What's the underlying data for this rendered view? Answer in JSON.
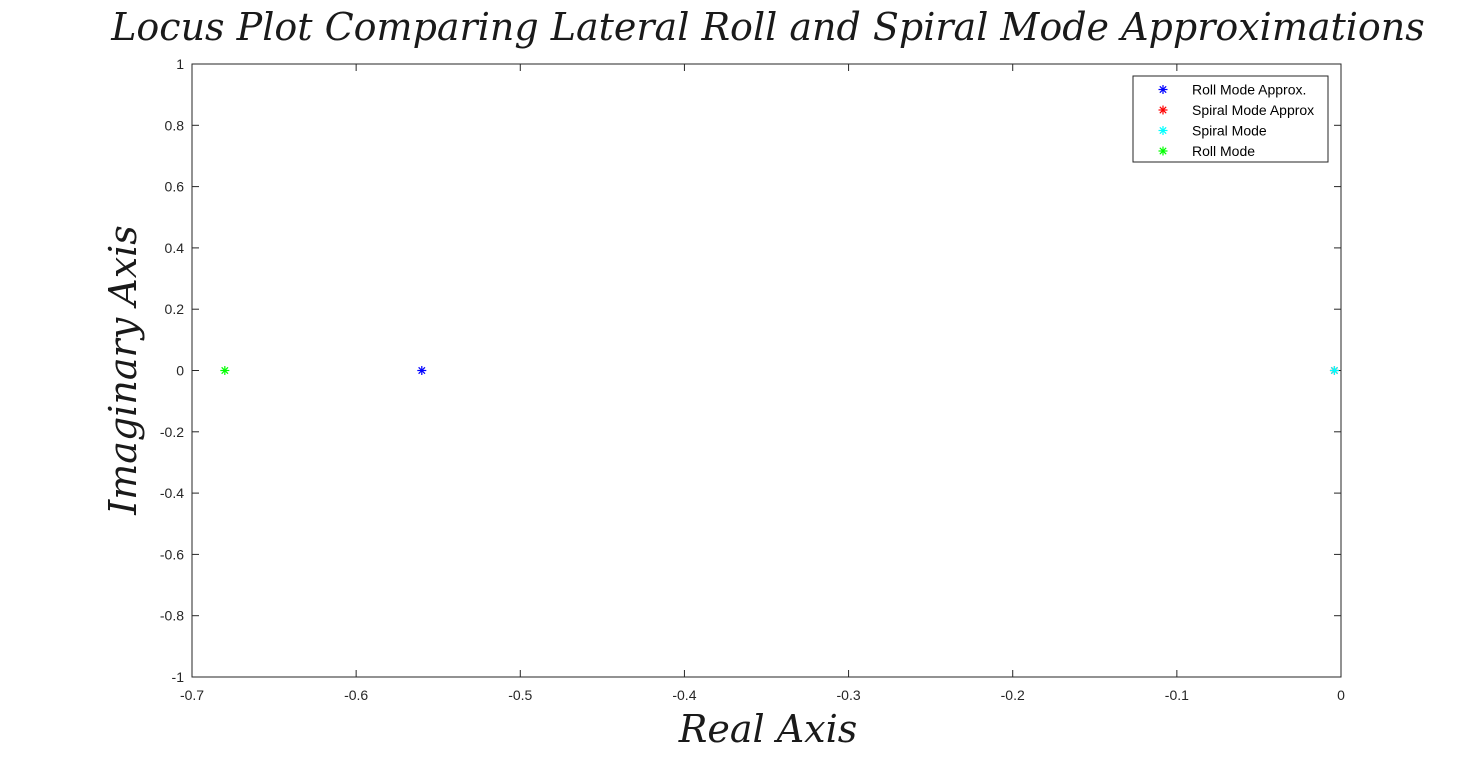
{
  "chart_data": {
    "type": "scatter",
    "title": "Locus Plot Comparing Lateral Roll and Spiral Mode Approximations",
    "xlabel": "Real Axis",
    "ylabel": "Imaginary Axis",
    "xlim": [
      -0.7,
      0
    ],
    "ylim": [
      -1,
      1
    ],
    "xticks": [
      -0.7,
      -0.6,
      -0.5,
      -0.4,
      -0.3,
      -0.2,
      -0.1,
      0
    ],
    "xtick_labels": [
      "-0.7",
      "-0.6",
      "-0.5",
      "-0.4",
      "-0.3",
      "-0.2",
      "-0.1",
      "0"
    ],
    "yticks": [
      -1,
      -0.8,
      -0.6,
      -0.4,
      -0.2,
      0,
      0.2,
      0.4,
      0.6,
      0.8,
      1
    ],
    "ytick_labels": [
      "-1",
      "-0.8",
      "-0.6",
      "-0.4",
      "-0.2",
      "0",
      "0.2",
      "0.4",
      "0.6",
      "0.8",
      "1"
    ],
    "grid": false,
    "legend_position": "top-right",
    "series": [
      {
        "name": "Roll Mode Approx.",
        "marker": "asterisk",
        "color": "#0000ff",
        "points": [
          {
            "x": -0.56,
            "y": 0
          }
        ]
      },
      {
        "name": "Spiral Mode Approx",
        "marker": "asterisk",
        "color": "#ff0000",
        "points": [
          {
            "x": -0.004,
            "y": 0
          }
        ]
      },
      {
        "name": "Spiral Mode",
        "marker": "asterisk",
        "color": "#00ffff",
        "points": [
          {
            "x": -0.004,
            "y": 0
          }
        ]
      },
      {
        "name": "Roll Mode",
        "marker": "asterisk",
        "color": "#00ff00",
        "points": [
          {
            "x": -0.68,
            "y": 0
          }
        ]
      }
    ]
  }
}
